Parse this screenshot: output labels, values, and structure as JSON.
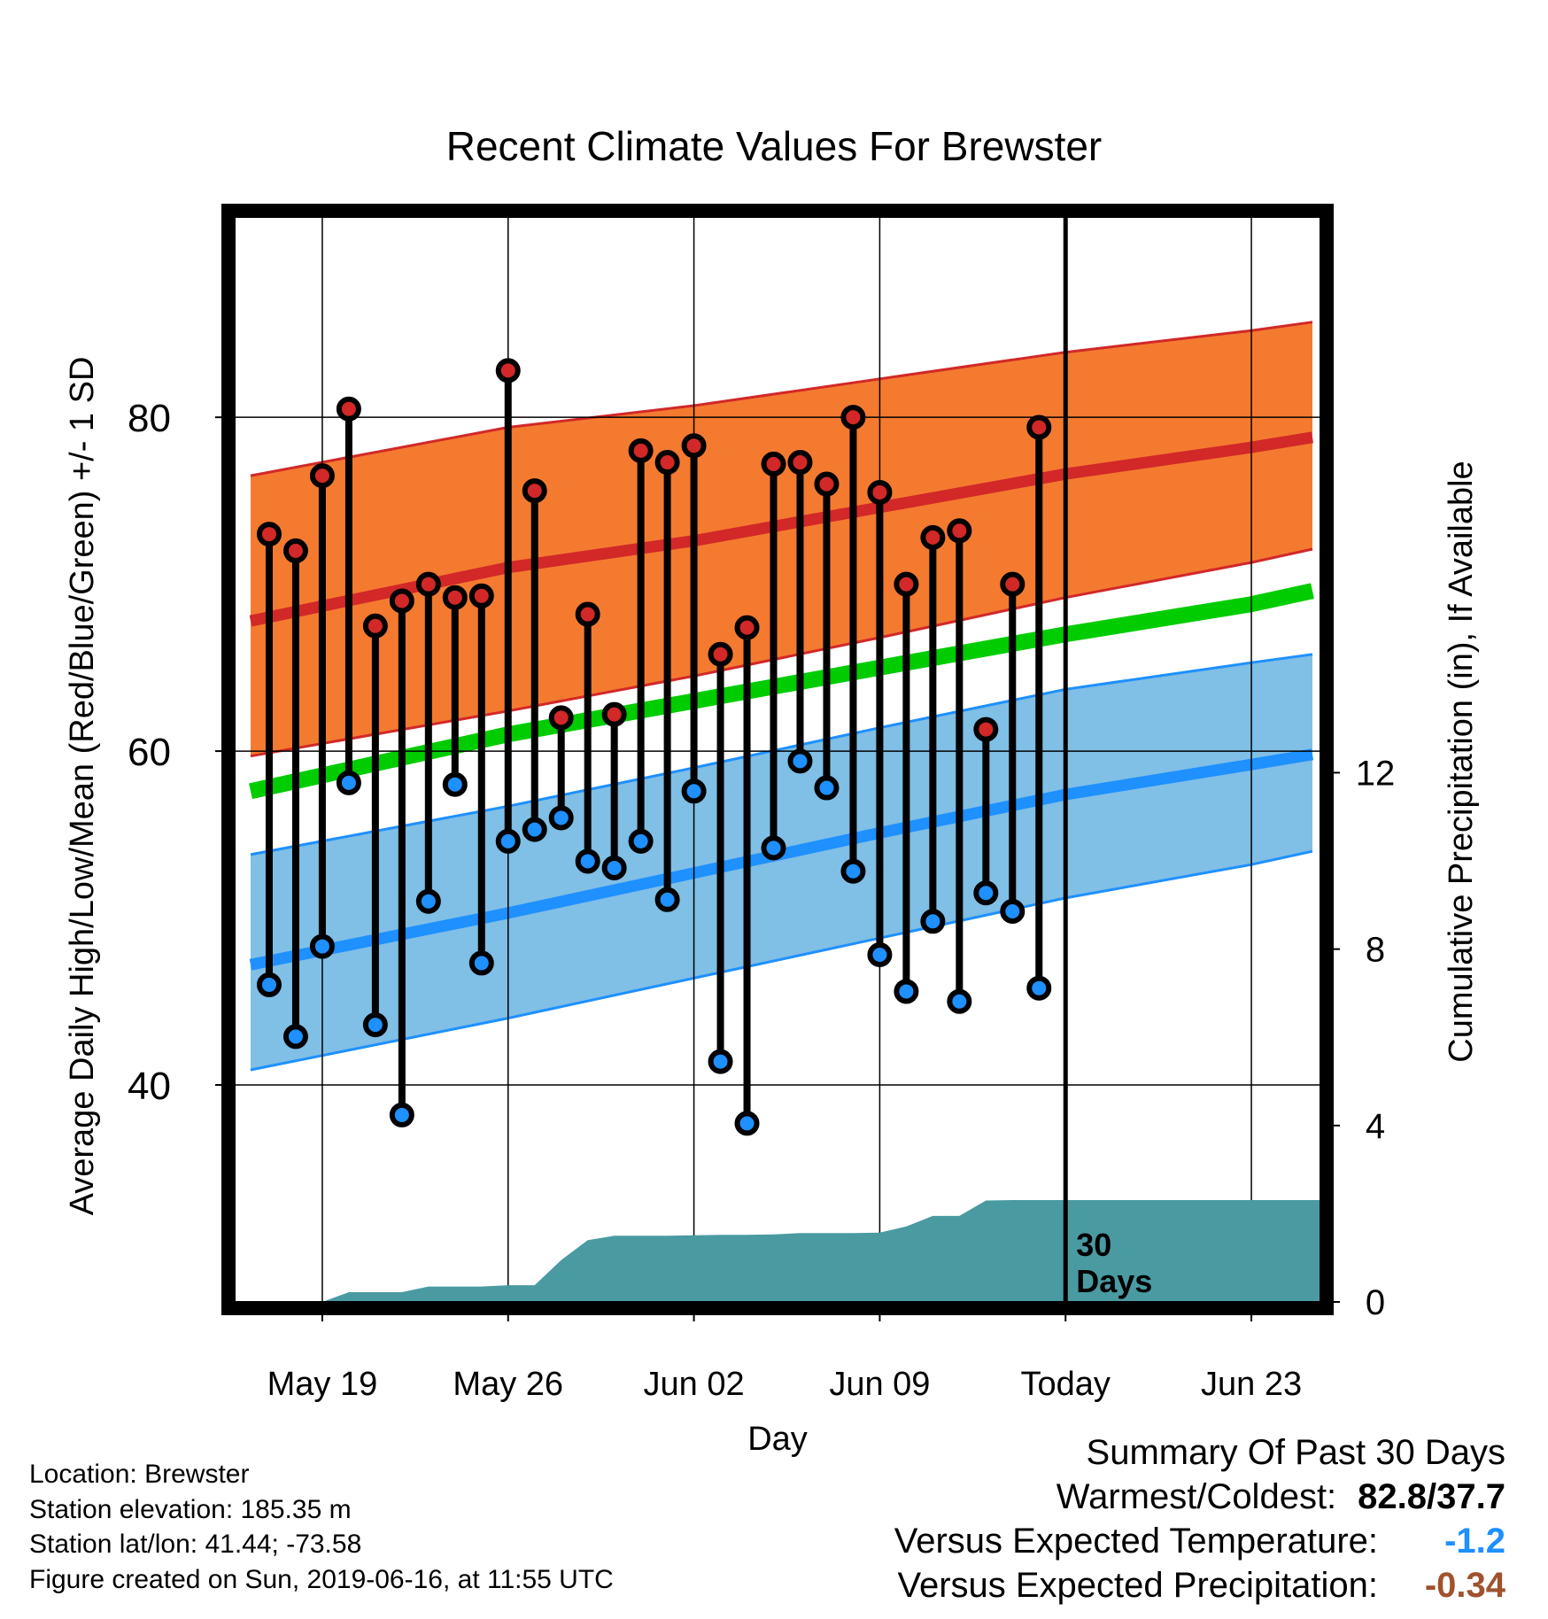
{
  "title": "Recent Climate Values For Brewster",
  "footer": {
    "location": "Location: Brewster",
    "elevation": "Station elevation: 185.35 m",
    "latlon": "Station lat/lon: 41.44; -73.58",
    "created": "Figure created on Sun, 2019-06-16, at 11:55 UTC"
  },
  "summary": {
    "title": "Summary Of Past 30 Days",
    "warm_cold_label": "Warmest/Coldest:",
    "warm_cold_value": "82.8/37.7",
    "temp_label": "Versus Expected Temperature:",
    "temp_value": "-1.2",
    "precip_label": "Versus Expected Precipitation:",
    "precip_value": "-0.34",
    "colors": {
      "warm_cold": "#000000",
      "temp": "#1e90ff",
      "precip": "#a0522d"
    }
  },
  "chart_data": {
    "type": "line",
    "xlabel": "Day",
    "ylabel": "Average Daily High/Low/Mean (Red/Blue/Green) +/- 1 SD",
    "y2label": "Cumulative Precipitation (in), If Available",
    "x_ticks": [
      "May 19",
      "May 26",
      "Jun 02",
      "Jun 09",
      "Today",
      "Jun 23"
    ],
    "x_tick_day_offsets": [
      0,
      7,
      14,
      21,
      28,
      35
    ],
    "xlim_day_offsets": [
      -3.3,
      37.6
    ],
    "ylim": [
      27,
      92
    ],
    "y_ticks": [
      40,
      60,
      80
    ],
    "y2lim": [
      0,
      24.6
    ],
    "y2_ticks": [
      0,
      4,
      8,
      12
    ],
    "today_annotation": "30\nDays",
    "colors": {
      "high_band": "#f47a30",
      "high_mean": "#d22828",
      "low_band": "#80bfe6",
      "low_mean": "#1e90ff",
      "mean": "#00cc00",
      "precip": "#4a9aa2",
      "high_dot": "#d22828",
      "low_dot": "#1e90ff"
    },
    "normals": {
      "day_offsets": [
        -2.7,
        7,
        14,
        21,
        28,
        35,
        37.3
      ],
      "high_mean": [
        67.8,
        71.0,
        72.6,
        74.6,
        76.6,
        78.2,
        78.8
      ],
      "high_upper": [
        76.5,
        79.4,
        80.7,
        82.3,
        83.9,
        85.2,
        85.7
      ],
      "high_lower": [
        59.7,
        62.4,
        64.5,
        66.8,
        69.2,
        71.3,
        72.1
      ],
      "low_mean": [
        47.2,
        50.3,
        52.7,
        55.1,
        57.4,
        59.2,
        59.8
      ],
      "low_upper": [
        53.8,
        56.7,
        59.0,
        61.4,
        63.7,
        65.3,
        65.8
      ],
      "low_lower": [
        40.9,
        44.0,
        46.4,
        48.8,
        51.2,
        53.2,
        54.0
      ],
      "mean": [
        57.6,
        61.0,
        63.0,
        65.0,
        67.0,
        68.8,
        69.6
      ]
    },
    "observed": {
      "day_offsets": [
        -2,
        -1,
        0,
        1,
        2,
        3,
        4,
        5,
        6,
        7,
        8,
        9,
        10,
        11,
        12,
        13,
        14,
        15,
        16,
        17,
        18,
        19,
        20,
        21,
        22,
        23,
        24,
        25,
        26,
        27
      ],
      "high": [
        73.0,
        72.0,
        76.5,
        80.5,
        67.5,
        69.0,
        70.0,
        69.2,
        69.3,
        82.8,
        75.6,
        62.0,
        68.2,
        62.2,
        78.0,
        77.3,
        78.3,
        65.8,
        67.4,
        77.2,
        77.3,
        76.0,
        80.0,
        75.5,
        70.0,
        72.8,
        73.2,
        61.3,
        70.0,
        79.4
      ],
      "low": [
        46.0,
        42.9,
        48.3,
        58.1,
        43.6,
        38.2,
        51.0,
        58.0,
        47.3,
        54.6,
        55.3,
        56.0,
        53.4,
        53.0,
        54.6,
        51.1,
        57.6,
        41.4,
        37.7,
        54.2,
        59.4,
        57.8,
        52.8,
        47.8,
        45.6,
        49.8,
        45.0,
        51.5,
        50.4,
        45.8
      ]
    },
    "precipitation": {
      "day_offsets": [
        -3,
        0,
        1,
        2,
        3,
        4,
        5,
        6,
        7,
        8,
        9,
        10,
        11,
        12,
        13,
        14,
        15,
        16,
        17,
        18,
        19,
        20,
        21,
        22,
        23,
        24,
        25,
        26,
        27,
        28,
        37.6
      ],
      "cumulative": [
        0.0,
        0.0,
        0.22,
        0.22,
        0.22,
        0.35,
        0.35,
        0.35,
        0.38,
        0.38,
        0.95,
        1.4,
        1.5,
        1.5,
        1.5,
        1.51,
        1.52,
        1.52,
        1.53,
        1.56,
        1.56,
        1.56,
        1.57,
        1.71,
        1.95,
        1.95,
        2.3,
        2.31,
        2.31,
        2.31,
        2.31
      ]
    }
  }
}
